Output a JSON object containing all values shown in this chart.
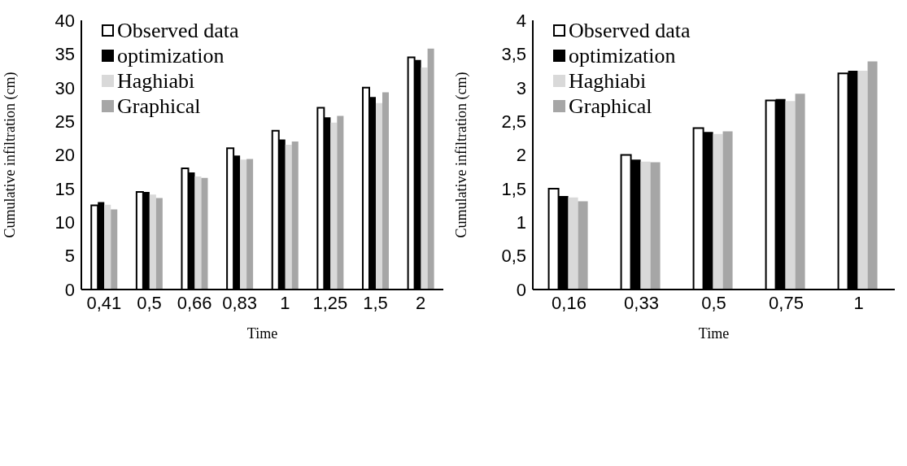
{
  "chart_data": [
    {
      "type": "bar",
      "xlabel": "Time",
      "ylabel": "Cumulative infiltration (cm)",
      "categories": [
        "0,41",
        "0,5",
        "0,66",
        "0,83",
        "1",
        "1,25",
        "1,5",
        "2"
      ],
      "series": [
        {
          "name": "Observed data",
          "color": "#ffffff",
          "values": [
            12.5,
            14.5,
            18.0,
            21.0,
            23.6,
            27.0,
            30.0,
            34.5
          ]
        },
        {
          "name": "optimization",
          "color": "#000000",
          "values": [
            13.0,
            14.5,
            17.4,
            19.9,
            22.3,
            25.6,
            28.6,
            34.1
          ]
        },
        {
          "name": "Haghiabi",
          "color": "#d9d9d9",
          "values": [
            12.6,
            14.1,
            16.8,
            19.3,
            21.5,
            24.8,
            27.7,
            33.0
          ]
        },
        {
          "name": "Graphical",
          "color": "#a6a6a6",
          "values": [
            11.9,
            13.6,
            16.6,
            19.4,
            22.0,
            25.8,
            29.3,
            35.8
          ]
        }
      ],
      "ylim": [
        0,
        40
      ],
      "yticks": [
        0,
        5,
        10,
        15,
        20,
        25,
        30,
        35,
        40
      ],
      "grid": false,
      "legend": "top left"
    },
    {
      "type": "bar",
      "xlabel": "Time",
      "ylabel": "Cumulative infiltration (cm)",
      "categories": [
        "0,16",
        "0,33",
        "0,5",
        "0,75",
        "1"
      ],
      "series": [
        {
          "name": "Observed data",
          "color": "#ffffff",
          "values": [
            1.5,
            2.0,
            2.4,
            2.81,
            3.21
          ]
        },
        {
          "name": "optimization",
          "color": "#000000",
          "values": [
            1.39,
            1.93,
            2.34,
            2.83,
            3.25
          ]
        },
        {
          "name": "Haghiabi",
          "color": "#d9d9d9",
          "values": [
            1.37,
            1.9,
            2.31,
            2.8,
            3.25
          ]
        },
        {
          "name": "Graphical",
          "color": "#a6a6a6",
          "values": [
            1.31,
            1.89,
            2.35,
            2.91,
            3.39
          ]
        }
      ],
      "ylim": [
        0,
        4
      ],
      "yticks": [
        {
          "value": 0,
          "label": "0"
        },
        {
          "value": 0.5,
          "label": "0,5"
        },
        {
          "value": 1,
          "label": "1"
        },
        {
          "value": 1.5,
          "label": "1,5"
        },
        {
          "value": 2,
          "label": "2"
        },
        {
          "value": 2.5,
          "label": "2,5"
        },
        {
          "value": 3,
          "label": "3"
        },
        {
          "value": 3.5,
          "label": "3,5"
        },
        {
          "value": 4,
          "label": "4"
        }
      ],
      "grid": false,
      "legend": "top left"
    }
  ]
}
